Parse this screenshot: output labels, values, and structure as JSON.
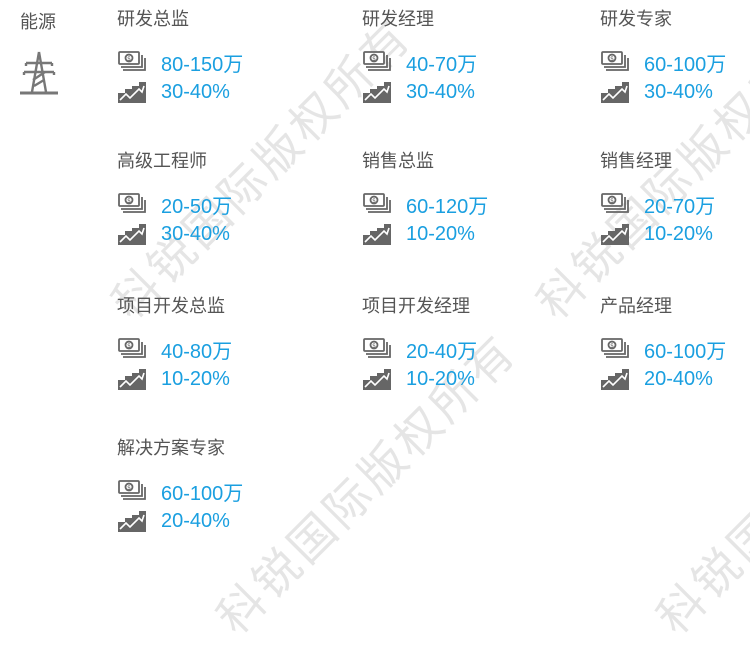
{
  "industry": {
    "label": "能源",
    "icon": "power-tower-icon"
  },
  "colors": {
    "value": "#1a9fe0",
    "title": "#555555",
    "icon": "#666666"
  },
  "watermark": "科锐国际版权所有",
  "positions": [
    {
      "title": "研发总监",
      "salary": "80-150万",
      "growth": "30-40%"
    },
    {
      "title": "研发经理",
      "salary": "40-70万",
      "growth": "30-40%"
    },
    {
      "title": "研发专家",
      "salary": "60-100万",
      "growth": "30-40%"
    },
    {
      "title": "高级工程师",
      "salary": "20-50万",
      "growth": "30-40%"
    },
    {
      "title": "销售总监",
      "salary": "60-120万",
      "growth": "10-20%"
    },
    {
      "title": "销售经理",
      "salary": "20-70万",
      "growth": "10-20%"
    },
    {
      "title": "项目开发总监",
      "salary": "40-80万",
      "growth": "10-20%"
    },
    {
      "title": "项目开发经理",
      "salary": "20-40万",
      "growth": "10-20%"
    },
    {
      "title": "产品经理",
      "salary": "60-100万",
      "growth": "20-40%"
    },
    {
      "title": "解决方案专家",
      "salary": "60-100万",
      "growth": "20-40%"
    }
  ]
}
